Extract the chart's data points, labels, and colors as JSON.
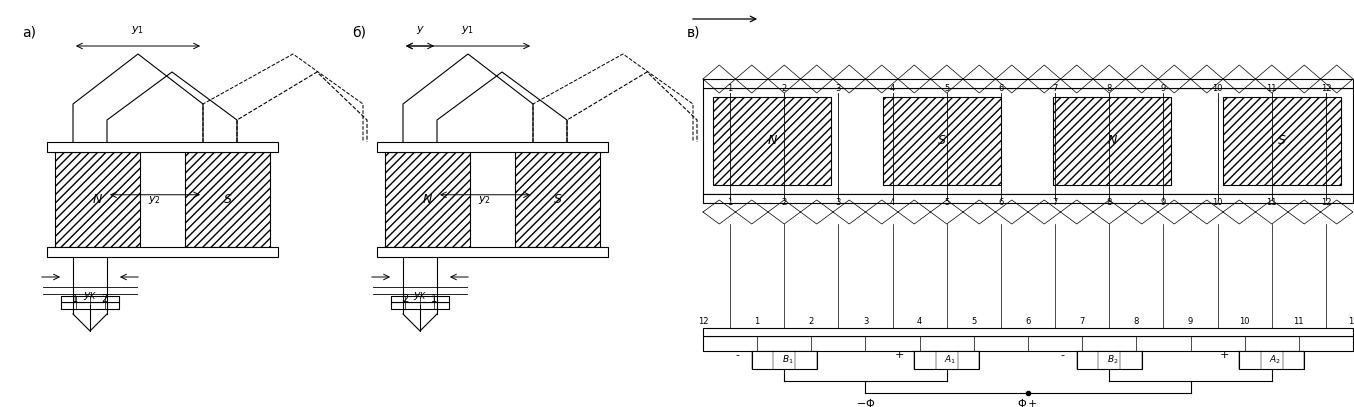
{
  "bg_color": "#ffffff",
  "line_color": "#000000",
  "fig_width": 13.54,
  "fig_height": 4.07,
  "label_a": "а)",
  "label_b": "б)",
  "label_v": "в)"
}
